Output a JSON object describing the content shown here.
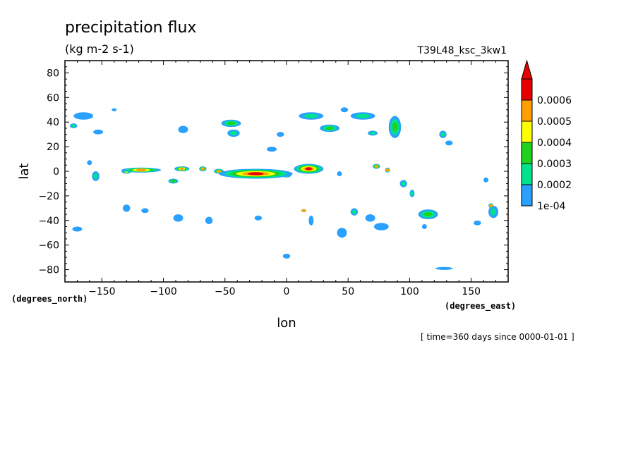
{
  "chart_data": {
    "type": "heatmap",
    "title": "precipitation flux",
    "subtitle": "(kg m-2 s-1)",
    "model_label": "T39L48_ksc_3kw1",
    "xlabel": "lon",
    "ylabel": "lat",
    "x_units": "(degrees_east)",
    "y_units": "(degrees_north)",
    "time_label": "[ time=360 days since 0000-01-01 ]",
    "xlim": [
      -180,
      180
    ],
    "ylim": [
      -90,
      90
    ],
    "x_ticks": [
      -150,
      -100,
      -50,
      0,
      50,
      100,
      150
    ],
    "x_tick_labels": [
      "−150",
      "−100",
      "−50",
      "0",
      "50",
      "100",
      "150"
    ],
    "y_ticks": [
      -80,
      -60,
      -40,
      -20,
      0,
      20,
      40,
      60,
      80
    ],
    "y_tick_labels": [
      "−80",
      "−60",
      "−40",
      "−20",
      "0",
      "20",
      "40",
      "60",
      "80"
    ],
    "grid": false,
    "colorbar": {
      "levels": [
        0.0001,
        0.0002,
        0.0003,
        0.0004,
        0.0005,
        0.0006
      ],
      "labels": [
        "1e-04",
        "0.0002",
        "0.0003",
        "0.0004",
        "0.0005",
        "0.0006"
      ],
      "colors": [
        "#2aa0ff",
        "#00e28c",
        "#1ed21e",
        "#ffff00",
        "#ffa000",
        "#e60000"
      ],
      "over_color": "#e60000"
    },
    "features": [
      {
        "lon": -25,
        "lat": -2,
        "level": 6,
        "rx": 30,
        "ry": 4
      },
      {
        "lon": 18,
        "lat": 2,
        "level": 6,
        "rx": 12,
        "ry": 4
      },
      {
        "lon": -118,
        "lat": 1,
        "level": 5,
        "rx": 16,
        "ry": 2
      },
      {
        "lon": -85,
        "lat": 2,
        "level": 5,
        "rx": 6,
        "ry": 2
      },
      {
        "lon": -68,
        "lat": 2,
        "level": 5,
        "rx": 3,
        "ry": 2
      },
      {
        "lon": -55,
        "lat": 0,
        "level": 5,
        "rx": 4,
        "ry": 2
      },
      {
        "lon": 73,
        "lat": 4,
        "level": 5,
        "rx": 3,
        "ry": 2
      },
      {
        "lon": 82,
        "lat": 1,
        "level": 5,
        "rx": 2,
        "ry": 2
      },
      {
        "lon": 14,
        "lat": -32,
        "level": 5,
        "rx": 2,
        "ry": 1
      },
      {
        "lon": 166,
        "lat": -28,
        "level": 5,
        "rx": 2,
        "ry": 2
      },
      {
        "lon": 0,
        "lat": -3,
        "level": 4,
        "rx": 4,
        "ry": 2
      },
      {
        "lon": -130,
        "lat": 0,
        "level": 4,
        "rx": 4,
        "ry": 2
      },
      {
        "lon": -92,
        "lat": -8,
        "level": 3,
        "rx": 4,
        "ry": 2
      },
      {
        "lon": -155,
        "lat": -4,
        "level": 2,
        "rx": 3,
        "ry": 4
      },
      {
        "lon": -45,
        "lat": 39,
        "level": 3,
        "rx": 8,
        "ry": 3
      },
      {
        "lon": -43,
        "lat": 31,
        "level": 2,
        "rx": 5,
        "ry": 3
      },
      {
        "lon": 20,
        "lat": 45,
        "level": 2,
        "rx": 10,
        "ry": 3
      },
      {
        "lon": 35,
        "lat": 35,
        "level": 3,
        "rx": 8,
        "ry": 3
      },
      {
        "lon": 62,
        "lat": 45,
        "level": 2,
        "rx": 10,
        "ry": 3
      },
      {
        "lon": 88,
        "lat": 36,
        "level": 3,
        "rx": 5,
        "ry": 9
      },
      {
        "lon": 70,
        "lat": 31,
        "level": 2,
        "rx": 4,
        "ry": 2
      },
      {
        "lon": 127,
        "lat": 30,
        "level": 2,
        "rx": 3,
        "ry": 3
      },
      {
        "lon": -165,
        "lat": 45,
        "level": 1,
        "rx": 8,
        "ry": 3
      },
      {
        "lon": -153,
        "lat": 32,
        "level": 1,
        "rx": 4,
        "ry": 2
      },
      {
        "lon": -84,
        "lat": 34,
        "level": 1,
        "rx": 4,
        "ry": 3
      },
      {
        "lon": -173,
        "lat": 37,
        "level": 2,
        "rx": 3,
        "ry": 2
      },
      {
        "lon": -5,
        "lat": 30,
        "level": 1,
        "rx": 3,
        "ry": 2
      },
      {
        "lon": 132,
        "lat": 23,
        "level": 1,
        "rx": 3,
        "ry": 2
      },
      {
        "lon": 95,
        "lat": -10,
        "level": 2,
        "rx": 3,
        "ry": 3
      },
      {
        "lon": 102,
        "lat": -18,
        "level": 2,
        "rx": 2,
        "ry": 3
      },
      {
        "lon": 115,
        "lat": -35,
        "level": 3,
        "rx": 8,
        "ry": 4
      },
      {
        "lon": 168,
        "lat": -33,
        "level": 2,
        "rx": 4,
        "ry": 5
      },
      {
        "lon": 155,
        "lat": -42,
        "level": 1,
        "rx": 3,
        "ry": 2
      },
      {
        "lon": 77,
        "lat": -45,
        "level": 1,
        "rx": 6,
        "ry": 3
      },
      {
        "lon": 45,
        "lat": -50,
        "level": 1,
        "rx": 4,
        "ry": 4
      },
      {
        "lon": 55,
        "lat": -33,
        "level": 2,
        "rx": 3,
        "ry": 3
      },
      {
        "lon": 68,
        "lat": -38,
        "level": 1,
        "rx": 4,
        "ry": 3
      },
      {
        "lon": 20,
        "lat": -40,
        "level": 1,
        "rx": 2,
        "ry": 4
      },
      {
        "lon": -130,
        "lat": -30,
        "level": 1,
        "rx": 3,
        "ry": 3
      },
      {
        "lon": -115,
        "lat": -32,
        "level": 1,
        "rx": 3,
        "ry": 2
      },
      {
        "lon": -88,
        "lat": -38,
        "level": 1,
        "rx": 4,
        "ry": 3
      },
      {
        "lon": -63,
        "lat": -40,
        "level": 1,
        "rx": 3,
        "ry": 3
      },
      {
        "lon": -23,
        "lat": -38,
        "level": 1,
        "rx": 3,
        "ry": 2
      },
      {
        "lon": 0,
        "lat": -69,
        "level": 1,
        "rx": 3,
        "ry": 2
      },
      {
        "lon": 128,
        "lat": -79,
        "level": 1,
        "rx": 7,
        "ry": 1
      },
      {
        "lon": -170,
        "lat": -47,
        "level": 1,
        "rx": 4,
        "ry": 2
      },
      {
        "lon": -160,
        "lat": 7,
        "level": 1,
        "rx": 2,
        "ry": 2
      },
      {
        "lon": -12,
        "lat": 18,
        "level": 1,
        "rx": 4,
        "ry": 2
      },
      {
        "lon": 47,
        "lat": 50,
        "level": 1,
        "rx": 3,
        "ry": 2
      },
      {
        "lon": 162,
        "lat": -7,
        "level": 1,
        "rx": 2,
        "ry": 2
      },
      {
        "lon": 43,
        "lat": -2,
        "level": 1,
        "rx": 2,
        "ry": 2
      },
      {
        "lon": -140,
        "lat": 50,
        "level": 1,
        "rx": 2,
        "ry": 1
      },
      {
        "lon": 112,
        "lat": -45,
        "level": 1,
        "rx": 2,
        "ry": 2
      }
    ]
  }
}
